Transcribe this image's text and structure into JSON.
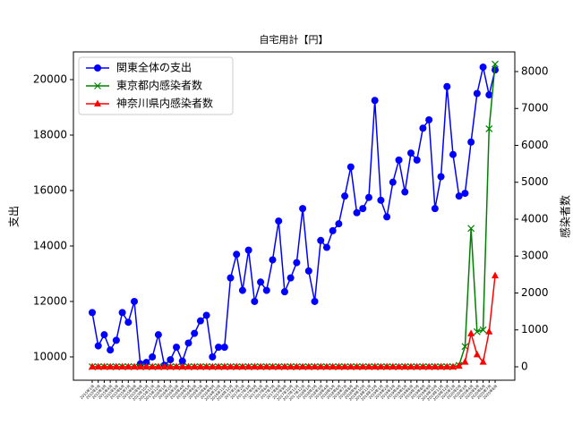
{
  "chart_data": {
    "type": "line",
    "title": "自宅用計【円】",
    "ylabel": "支出",
    "y2label": "感染者数",
    "categories": [
      "2015年1月",
      "2015年2月",
      "2015年3月",
      "2015年4月",
      "2015年5月",
      "2015年6月",
      "2015年7月",
      "2015年8月",
      "2015年9月",
      "2015年10月",
      "2015年11月",
      "2015年12月",
      "2016年1月",
      "2016年2月",
      "2016年3月",
      "2016年4月",
      "2016年5月",
      "2016年6月",
      "2016年7月",
      "2016年8月",
      "2016年9月",
      "2016年10月",
      "2016年11月",
      "2016年12月",
      "2017年1月",
      "2017年2月",
      "2017年3月",
      "2017年4月",
      "2017年5月",
      "2017年6月",
      "2017年7月",
      "2017年8月",
      "2017年9月",
      "2017年10月",
      "2017年11月",
      "2017年12月",
      "2018年1月",
      "2018年2月",
      "2018年3月",
      "2018年4月",
      "2018年5月",
      "2018年6月",
      "2018年7月",
      "2018年8月",
      "2018年9月",
      "2018年10月",
      "2018年11月",
      "2018年12月",
      "2019年1月",
      "2019年2月",
      "2019年3月",
      "2019年4月",
      "2019年5月",
      "2019年6月",
      "2019年7月",
      "2019年8月",
      "2019年9月",
      "2019年10月",
      "2019年11月",
      "2019年12月",
      "2020年1月",
      "2020年2月",
      "2020年3月",
      "2020年4月",
      "2020年5月",
      "2020年6月",
      "2020年7月",
      "2020年8月"
    ],
    "series": [
      {
        "name": "関東全体の支出",
        "color": "#0000ff",
        "marker": "circle",
        "axis": "y",
        "values": [
          11600,
          10400,
          10800,
          10250,
          10600,
          11600,
          11250,
          12000,
          9750,
          9800,
          10000,
          10800,
          9700,
          9900,
          10350,
          9850,
          10500,
          10850,
          11300,
          11500,
          10000,
          10350,
          10350,
          12850,
          13700,
          12400,
          13850,
          12000,
          12700,
          12400,
          13500,
          14900,
          12350,
          12850,
          13400,
          15350,
          13100,
          12000,
          14200,
          13950,
          14550,
          14800,
          15800,
          16850,
          15200,
          15350,
          15750,
          19250,
          15650,
          15050,
          16300,
          17100,
          15950,
          17350,
          17100,
          18250,
          18550,
          15350,
          16500,
          19750,
          17300,
          15800,
          15900,
          17750,
          19500,
          20450,
          19450,
          20350
        ]
      },
      {
        "name": "東京都内感染者数",
        "color": "#008000",
        "marker": "x",
        "axis": "y2",
        "values": [
          0,
          0,
          0,
          0,
          0,
          0,
          0,
          0,
          0,
          0,
          0,
          0,
          0,
          0,
          0,
          0,
          0,
          0,
          0,
          0,
          0,
          0,
          0,
          0,
          0,
          0,
          0,
          0,
          0,
          0,
          0,
          0,
          0,
          0,
          0,
          0,
          0,
          0,
          0,
          0,
          0,
          0,
          0,
          0,
          0,
          0,
          0,
          0,
          0,
          0,
          0,
          0,
          0,
          0,
          0,
          0,
          0,
          0,
          0,
          0,
          0,
          40,
          550,
          3750,
          950,
          1000,
          6450,
          8200
        ]
      },
      {
        "name": "神奈川県内感染者数",
        "color": "#ff0000",
        "marker": "triangle",
        "axis": "y2",
        "values": [
          0,
          0,
          0,
          0,
          0,
          0,
          0,
          0,
          0,
          0,
          0,
          0,
          0,
          0,
          0,
          0,
          0,
          0,
          0,
          0,
          0,
          0,
          0,
          0,
          0,
          0,
          0,
          0,
          0,
          0,
          0,
          0,
          0,
          0,
          0,
          0,
          0,
          0,
          0,
          0,
          0,
          0,
          0,
          0,
          0,
          0,
          0,
          0,
          0,
          0,
          0,
          0,
          0,
          0,
          0,
          0,
          0,
          0,
          0,
          0,
          0,
          20,
          130,
          900,
          330,
          130,
          950,
          2470
        ]
      }
    ],
    "ylim": [
      9160,
      21000
    ],
    "yticks": [
      10000,
      12000,
      14000,
      16000,
      18000,
      20000
    ],
    "y2lim": [
      -364,
      8533
    ],
    "y2ticks": [
      0,
      1000,
      2000,
      3000,
      4000,
      5000,
      6000,
      7000,
      8000
    ],
    "legend": "upper left"
  }
}
